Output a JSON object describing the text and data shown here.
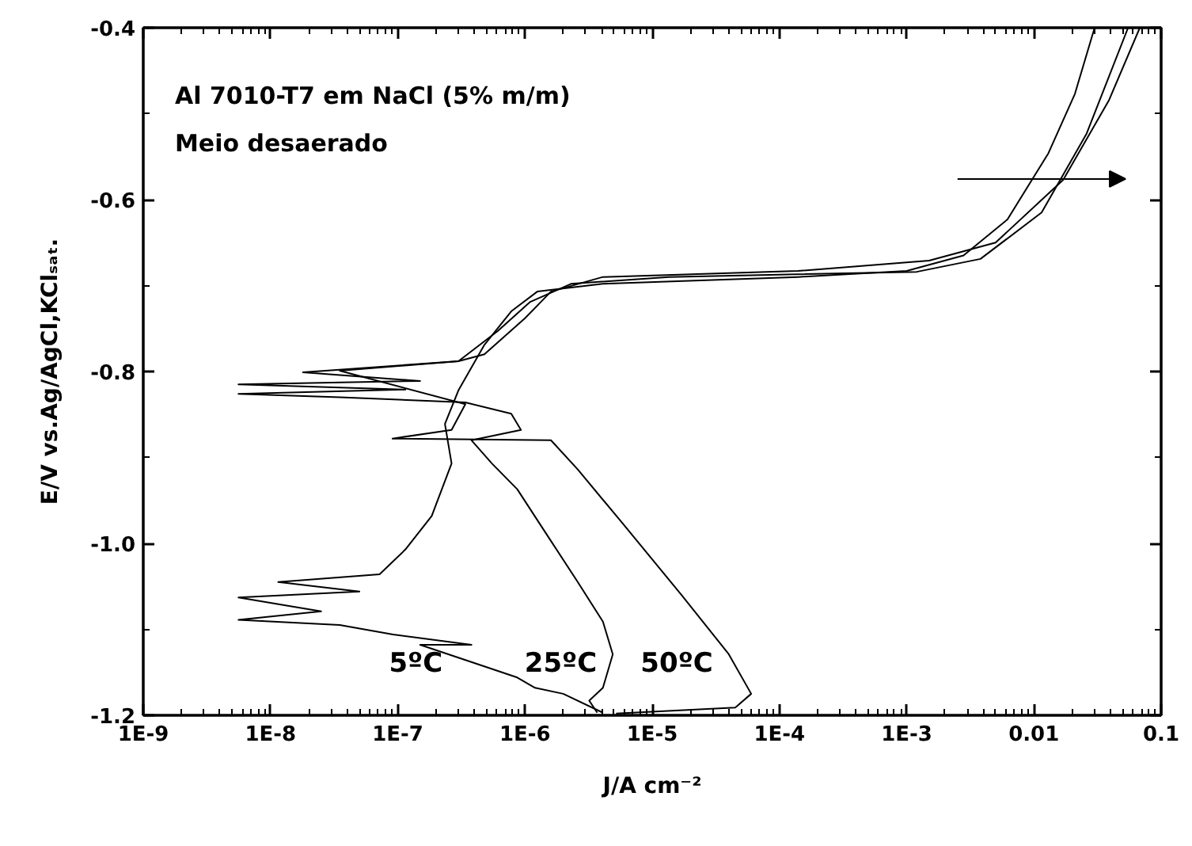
{
  "chart_data": {
    "type": "line",
    "xlabel": "J/A cm⁻²",
    "ylabel": "E/V vs.Ag/AgCl,KClₛₐₜ.",
    "log": "x",
    "grid": false,
    "legend": false,
    "line_style": "solid",
    "marker": "none",
    "xlim": [
      1e-09,
      0.1
    ],
    "ylim": [
      -1.2,
      -0.4
    ],
    "xticks": [
      {
        "value": 1e-09,
        "label": "1E-9"
      },
      {
        "value": 1e-08,
        "label": "1E-8"
      },
      {
        "value": 1e-07,
        "label": "1E-7"
      },
      {
        "value": 1e-06,
        "label": "1E-6"
      },
      {
        "value": 1e-05,
        "label": "1E-5"
      },
      {
        "value": 0.0001,
        "label": "1E-4"
      },
      {
        "value": 0.001,
        "label": "1E-3"
      },
      0.01,
      0.1
    ],
    "yticks": [
      -1.2,
      {
        "value": -1.0,
        "label": "-1.0"
      },
      -0.8,
      -0.6,
      -0.4
    ],
    "annotations": [
      "Al 7010-T7 em NaCl (5% m/m)",
      "Meio desaerado"
    ],
    "series": [
      {
        "name": "5ºC",
        "color": "#000000",
        "x": [
          4.1e-06,
          2e-06,
          1.2e-06,
          8.7e-07,
          3e-07,
          1.5e-07,
          3.8e-07,
          9.2e-08,
          3.5e-08,
          5.6e-09,
          2.5e-08,
          5.6e-09,
          5e-08,
          1.15e-08,
          7.2e-08,
          1.15e-07,
          1.85e-07,
          2.65e-07,
          2.35e-07,
          3e-07,
          4.8e-07,
          7.8e-07,
          1.25e-06,
          4.1e-06,
          0.00014,
          0.001,
          0.0028,
          0.0062,
          0.013,
          0.021,
          0.03
        ],
        "values": [
          -1.197,
          -1.175,
          -1.168,
          -1.156,
          -1.133,
          -1.118,
          -1.118,
          -1.106,
          -1.095,
          -1.089,
          -1.079,
          -1.063,
          -1.056,
          -1.045,
          -1.036,
          -1.007,
          -0.968,
          -0.907,
          -0.861,
          -0.822,
          -0.769,
          -0.73,
          -0.707,
          -0.698,
          -0.69,
          -0.683,
          -0.665,
          -0.623,
          -0.546,
          -0.477,
          -0.4
        ]
      },
      {
        "name": "25ºC",
        "color": "#000000",
        "x": [
          3.7e-06,
          3.2e-06,
          4.1e-06,
          4.9e-06,
          4.1e-06,
          2.6e-06,
          1.4e-06,
          8.7e-07,
          5.5e-07,
          3.8e-07,
          9.3e-07,
          7.8e-07,
          3.4e-07,
          3.5e-08,
          5.6e-09,
          1.15e-07,
          5.6e-09,
          1.5e-07,
          1.8e-08,
          3e-07,
          6.1e-07,
          1.1e-06,
          2.3e-06,
          1.35e-05,
          0.0012,
          0.0038,
          0.0115,
          0.026,
          0.055
        ],
        "values": [
          -1.197,
          -1.183,
          -1.168,
          -1.129,
          -1.091,
          -1.045,
          -0.984,
          -0.937,
          -0.907,
          -0.88,
          -0.868,
          -0.849,
          -0.836,
          -0.83,
          -0.826,
          -0.821,
          -0.815,
          -0.811,
          -0.801,
          -0.788,
          -0.753,
          -0.719,
          -0.698,
          -0.69,
          -0.684,
          -0.669,
          -0.615,
          -0.523,
          -0.4
        ]
      },
      {
        "name": "50ºC",
        "color": "#000000",
        "x": [
          5.2e-06,
          4.5e-05,
          6e-05,
          4e-05,
          1.7e-05,
          5.8e-06,
          2.6e-06,
          1.6e-06,
          9.1e-08,
          2.65e-07,
          3.4e-07,
          3.5e-08,
          3e-07,
          4.8e-07,
          1e-06,
          1.6e-06,
          4.1e-06,
          0.00014,
          0.0015,
          0.005,
          0.017,
          0.039,
          0.068
        ],
        "values": [
          -1.198,
          -1.191,
          -1.175,
          -1.129,
          -1.06,
          -0.976,
          -0.914,
          -0.88,
          -0.878,
          -0.868,
          -0.838,
          -0.799,
          -0.788,
          -0.78,
          -0.738,
          -0.707,
          -0.69,
          -0.683,
          -0.671,
          -0.65,
          -0.577,
          -0.484,
          -0.4
        ]
      }
    ]
  }
}
